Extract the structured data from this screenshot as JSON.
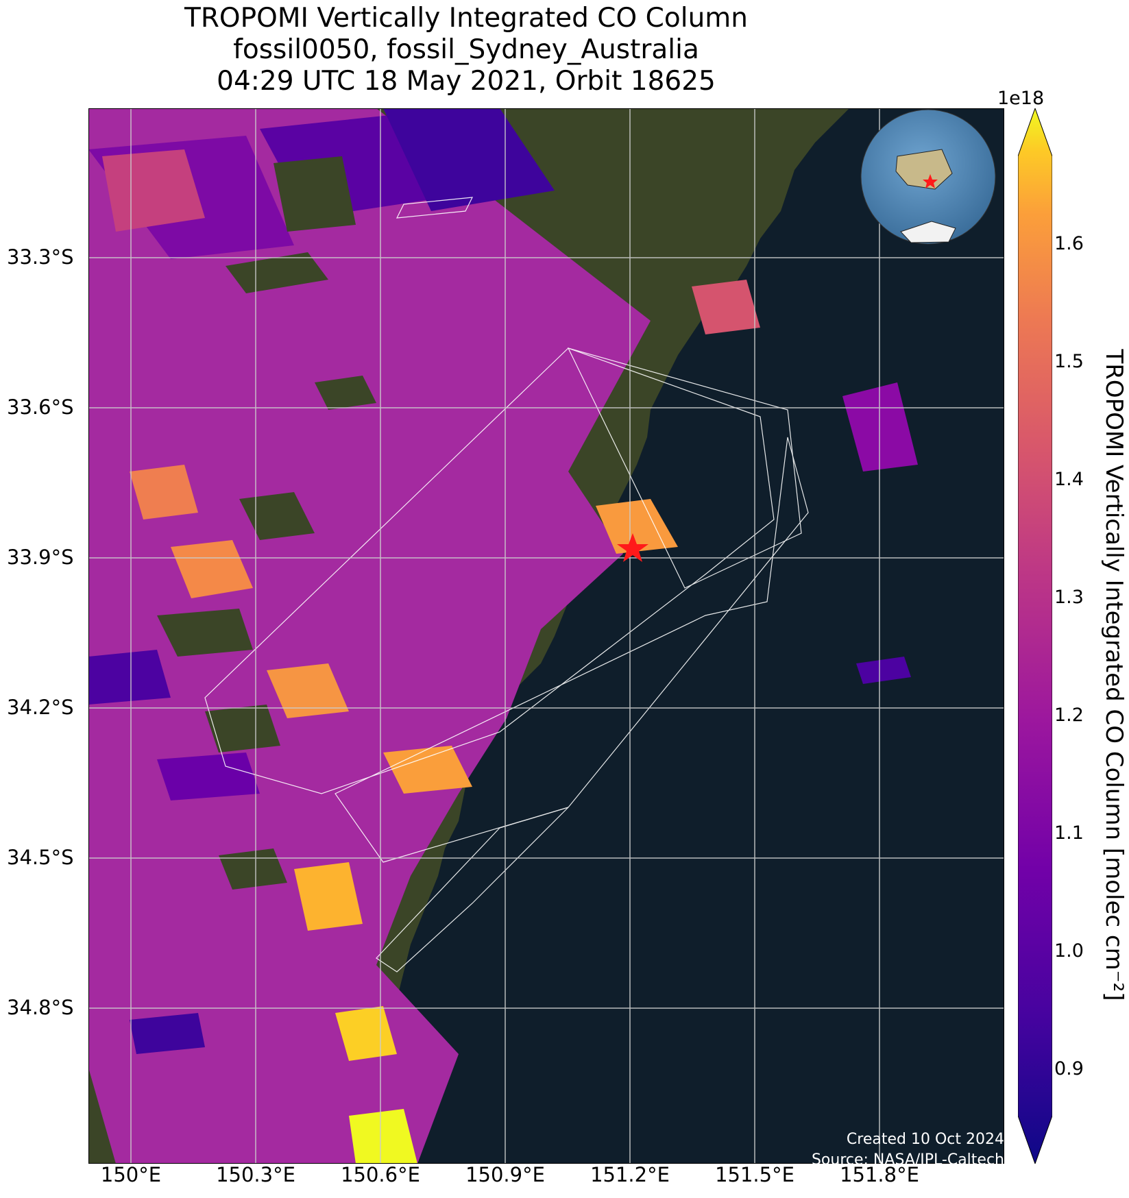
{
  "title": {
    "line1": "TROPOMI Vertically Integrated CO Column",
    "line2": "fossil0050, fossil_Sydney_Australia",
    "line3": "04:29 UTC 18 May 2021, Orbit 18625"
  },
  "map": {
    "lat_ticks": [
      "33.3°S",
      "33.6°S",
      "33.9°S",
      "34.2°S",
      "34.5°S",
      "34.8°S"
    ],
    "lon_ticks": [
      "150°E",
      "150.3°E",
      "150.6°E",
      "150.9°E",
      "151.2°E",
      "151.5°E",
      "151.8°E"
    ],
    "target_marker": "red-star-icon",
    "inset_globe": "globe-inset-icon",
    "colors": {
      "ocean": "#0f1e2b",
      "land": "#3a4526",
      "grid": "#cccccc",
      "star": "#ff1a1a"
    }
  },
  "colorbar": {
    "exponent_label": "1e18",
    "label": "TROPOMI Vertically Integrated CO Column [molec cm⁻²]",
    "ticks": [
      "0.9",
      "1.0",
      "1.1",
      "1.2",
      "1.3",
      "1.4",
      "1.5",
      "1.6"
    ],
    "colormap": "plasma"
  },
  "credits": {
    "created": "Created 10 Oct 2024",
    "source": "Source: NASA/JPL-Caltech"
  }
}
